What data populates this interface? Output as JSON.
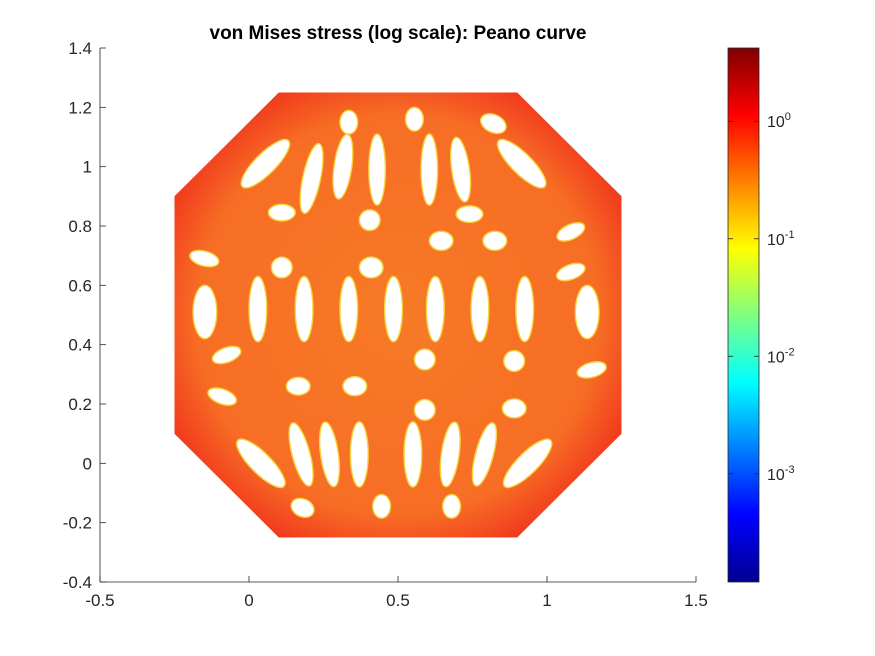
{
  "chart_data": {
    "type": "heatmap",
    "title": "von Mises stress (log scale): Peano curve",
    "xlabel": "",
    "ylabel": "",
    "xlim": [
      -0.5,
      1.5
    ],
    "ylim": [
      -0.4,
      1.4
    ],
    "x_ticks": [
      -0.5,
      0,
      0.5,
      1,
      1.5
    ],
    "x_tick_labels": [
      "-0.5",
      "0",
      "0.5",
      "1",
      "1.5"
    ],
    "y_ticks": [
      -0.4,
      -0.2,
      0,
      0.2,
      0.4,
      0.6,
      0.8,
      1,
      1.2,
      1.4
    ],
    "y_tick_labels": [
      "-0.4",
      "-0.2",
      "0",
      "0.2",
      "0.4",
      "0.6",
      "0.8",
      "1",
      "1.2",
      "1.4"
    ],
    "grid": false,
    "colormap": "jet",
    "colorbar": {
      "scale": "log",
      "range": [
        0.00012,
        4.2
      ],
      "ticks": [
        0.001,
        0.01,
        0.1,
        1
      ],
      "tick_labels": [
        {
          "base": "10",
          "exp": "-3"
        },
        {
          "base": "10",
          "exp": "-2"
        },
        {
          "base": "10",
          "exp": "-1"
        },
        {
          "base": "10",
          "exp": "0"
        }
      ],
      "colors": [
        "#00008f",
        "#0000ff",
        "#0080ff",
        "#00ffff",
        "#80ff80",
        "#ffff00",
        "#ff8000",
        "#ff0000",
        "#800000"
      ]
    },
    "domain_outline": [
      [
        0.1,
        1.25
      ],
      [
        0.9,
        1.25
      ],
      [
        1.25,
        0.9
      ],
      [
        1.25,
        0.1
      ],
      [
        0.9,
        -0.25
      ],
      [
        0.1,
        -0.25
      ],
      [
        -0.25,
        0.1
      ],
      [
        -0.25,
        0.9
      ]
    ],
    "stress_field": {
      "dominant_color": "#f77a26",
      "high_stress_color": "#ef2a1a",
      "low_stress_color": "#f6d33a"
    },
    "holes": [
      {
        "x": 0.335,
        "y": 1.15,
        "rx": 0.03,
        "ry": 0.04,
        "rot": 0
      },
      {
        "x": 0.555,
        "y": 1.16,
        "rx": 0.03,
        "ry": 0.04,
        "rot": 0
      },
      {
        "x": 0.82,
        "y": 1.145,
        "rx": 0.045,
        "ry": 0.03,
        "rot": 25
      },
      {
        "x": 0.21,
        "y": 0.96,
        "rx": 0.03,
        "ry": 0.12,
        "rot": 12
      },
      {
        "x": 0.315,
        "y": 1.0,
        "rx": 0.03,
        "ry": 0.11,
        "rot": 8
      },
      {
        "x": 0.43,
        "y": 0.99,
        "rx": 0.028,
        "ry": 0.12,
        "rot": 0
      },
      {
        "x": 0.605,
        "y": 0.99,
        "rx": 0.028,
        "ry": 0.12,
        "rot": 0
      },
      {
        "x": 0.71,
        "y": 0.99,
        "rx": 0.03,
        "ry": 0.11,
        "rot": -8
      },
      {
        "x": 0.055,
        "y": 1.01,
        "rx": 0.035,
        "ry": 0.11,
        "rot": 45
      },
      {
        "x": 0.915,
        "y": 1.01,
        "rx": 0.035,
        "ry": 0.11,
        "rot": -45
      },
      {
        "x": 0.11,
        "y": 0.845,
        "rx": 0.045,
        "ry": 0.028,
        "rot": 0
      },
      {
        "x": 0.74,
        "y": 0.84,
        "rx": 0.045,
        "ry": 0.028,
        "rot": 0
      },
      {
        "x": 0.405,
        "y": 0.82,
        "rx": 0.035,
        "ry": 0.035,
        "rot": 0
      },
      {
        "x": 0.645,
        "y": 0.75,
        "rx": 0.04,
        "ry": 0.032,
        "rot": 0
      },
      {
        "x": 0.825,
        "y": 0.75,
        "rx": 0.04,
        "ry": 0.032,
        "rot": 0
      },
      {
        "x": 1.08,
        "y": 0.78,
        "rx": 0.05,
        "ry": 0.025,
        "rot": -25
      },
      {
        "x": -0.15,
        "y": 0.69,
        "rx": 0.05,
        "ry": 0.025,
        "rot": 15
      },
      {
        "x": 0.11,
        "y": 0.66,
        "rx": 0.035,
        "ry": 0.035,
        "rot": 0
      },
      {
        "x": 0.41,
        "y": 0.66,
        "rx": 0.04,
        "ry": 0.035,
        "rot": 0
      },
      {
        "x": 1.08,
        "y": 0.645,
        "rx": 0.05,
        "ry": 0.025,
        "rot": -20
      },
      {
        "x": -0.148,
        "y": 0.51,
        "rx": 0.04,
        "ry": 0.09,
        "rot": 0
      },
      {
        "x": 0.03,
        "y": 0.52,
        "rx": 0.03,
        "ry": 0.11,
        "rot": 0
      },
      {
        "x": 0.185,
        "y": 0.52,
        "rx": 0.03,
        "ry": 0.11,
        "rot": 0
      },
      {
        "x": 0.335,
        "y": 0.52,
        "rx": 0.03,
        "ry": 0.11,
        "rot": 0
      },
      {
        "x": 0.485,
        "y": 0.52,
        "rx": 0.03,
        "ry": 0.11,
        "rot": 0
      },
      {
        "x": 0.625,
        "y": 0.52,
        "rx": 0.03,
        "ry": 0.11,
        "rot": 0
      },
      {
        "x": 0.775,
        "y": 0.52,
        "rx": 0.03,
        "ry": 0.11,
        "rot": 0
      },
      {
        "x": 0.925,
        "y": 0.52,
        "rx": 0.03,
        "ry": 0.11,
        "rot": 0
      },
      {
        "x": 1.135,
        "y": 0.51,
        "rx": 0.04,
        "ry": 0.09,
        "rot": 0
      },
      {
        "x": -0.075,
        "y": 0.365,
        "rx": 0.05,
        "ry": 0.025,
        "rot": -20
      },
      {
        "x": 0.59,
        "y": 0.35,
        "rx": 0.035,
        "ry": 0.035,
        "rot": 0
      },
      {
        "x": 0.89,
        "y": 0.345,
        "rx": 0.035,
        "ry": 0.035,
        "rot": 0
      },
      {
        "x": 1.15,
        "y": 0.315,
        "rx": 0.05,
        "ry": 0.025,
        "rot": -15
      },
      {
        "x": 0.165,
        "y": 0.26,
        "rx": 0.04,
        "ry": 0.03,
        "rot": 0
      },
      {
        "x": 0.355,
        "y": 0.26,
        "rx": 0.04,
        "ry": 0.032,
        "rot": 0
      },
      {
        "x": -0.09,
        "y": 0.225,
        "rx": 0.05,
        "ry": 0.025,
        "rot": 20
      },
      {
        "x": 0.59,
        "y": 0.18,
        "rx": 0.035,
        "ry": 0.035,
        "rot": 0
      },
      {
        "x": 0.89,
        "y": 0.185,
        "rx": 0.04,
        "ry": 0.032,
        "rot": 0
      },
      {
        "x": 0.04,
        "y": 0.0,
        "rx": 0.035,
        "ry": 0.11,
        "rot": -45
      },
      {
        "x": 0.175,
        "y": 0.03,
        "rx": 0.03,
        "ry": 0.11,
        "rot": -15
      },
      {
        "x": 0.27,
        "y": 0.03,
        "rx": 0.03,
        "ry": 0.11,
        "rot": -8
      },
      {
        "x": 0.37,
        "y": 0.03,
        "rx": 0.03,
        "ry": 0.11,
        "rot": 0
      },
      {
        "x": 0.55,
        "y": 0.03,
        "rx": 0.03,
        "ry": 0.11,
        "rot": 0
      },
      {
        "x": 0.675,
        "y": 0.03,
        "rx": 0.03,
        "ry": 0.11,
        "rot": 8
      },
      {
        "x": 0.79,
        "y": 0.03,
        "rx": 0.03,
        "ry": 0.11,
        "rot": 15
      },
      {
        "x": 0.935,
        "y": 0.0,
        "rx": 0.035,
        "ry": 0.11,
        "rot": 45
      },
      {
        "x": 0.18,
        "y": -0.15,
        "rx": 0.04,
        "ry": 0.03,
        "rot": 25
      },
      {
        "x": 0.445,
        "y": -0.145,
        "rx": 0.03,
        "ry": 0.04,
        "rot": 0
      },
      {
        "x": 0.68,
        "y": -0.145,
        "rx": 0.03,
        "ry": 0.04,
        "rot": 0
      }
    ]
  }
}
